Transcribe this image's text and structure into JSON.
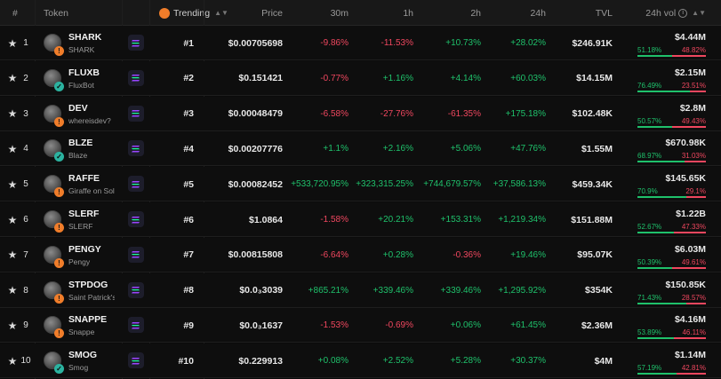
{
  "header": {
    "rank": "#",
    "token": "Token",
    "trending": "Trending",
    "price": "Price",
    "m30": "30m",
    "h1": "1h",
    "h2": "2h",
    "h24": "24h",
    "tvl": "TVL",
    "vol": "24h vol"
  },
  "colors": {
    "positive": "#1fc16b",
    "negative": "#f0475f",
    "accent": "#f07d2a"
  },
  "rows": [
    {
      "rank": "1",
      "name": "SHARK",
      "sub": "SHARK",
      "badge": "warning",
      "trending": "#1",
      "price": "$0.00705698",
      "m30": "-9.86%",
      "h1": "-11.53%",
      "h2": "+10.73%",
      "h24": "+28.02%",
      "tvl": "$246.91K",
      "vol": "$4.44M",
      "buy": "51.18%",
      "sell": "48.82%",
      "buy_frac": 0.5118
    },
    {
      "rank": "2",
      "name": "FLUXB",
      "sub": "FluxBot",
      "badge": "shield",
      "trending": "#2",
      "price": "$0.151421",
      "m30": "-0.77%",
      "h1": "+1.16%",
      "h2": "+4.14%",
      "h24": "+60.03%",
      "tvl": "$14.15M",
      "vol": "$2.15M",
      "buy": "76.49%",
      "sell": "23.51%",
      "buy_frac": 0.7649
    },
    {
      "rank": "3",
      "name": "DEV",
      "sub": "whereisdev?",
      "badge": "warning",
      "trending": "#3",
      "price": "$0.00048479",
      "m30": "-6.58%",
      "h1": "-27.76%",
      "h2": "-61.35%",
      "h24": "+175.18%",
      "tvl": "$102.48K",
      "vol": "$2.8M",
      "buy": "50.57%",
      "sell": "49.43%",
      "buy_frac": 0.5057
    },
    {
      "rank": "4",
      "name": "BLZE",
      "sub": "Blaze",
      "badge": "shield",
      "trending": "#4",
      "price": "$0.00207776",
      "m30": "+1.1%",
      "h1": "+2.16%",
      "h2": "+5.06%",
      "h24": "+47.76%",
      "tvl": "$1.55M",
      "vol": "$670.98K",
      "buy": "68.97%",
      "sell": "31.03%",
      "buy_frac": 0.6897
    },
    {
      "rank": "5",
      "name": "RAFFE",
      "sub": "Giraffe on Sol...",
      "badge": "warning",
      "trending": "#5",
      "price": "$0.00082452",
      "m30": "+533,720.95%",
      "h1": "+323,315.25%",
      "h2": "+744,679.57%",
      "h24": "+37,586.13%",
      "tvl": "$459.34K",
      "vol": "$145.65K",
      "buy": "70.9%",
      "sell": "29.1%",
      "buy_frac": 0.709
    },
    {
      "rank": "6",
      "name": "SLERF",
      "sub": "SLERF",
      "badge": "warning",
      "trending": "#6",
      "price": "$1.0864",
      "m30": "-1.58%",
      "h1": "+20.21%",
      "h2": "+153.31%",
      "h24": "+1,219.34%",
      "tvl": "$151.88M",
      "vol": "$1.22B",
      "buy": "52.67%",
      "sell": "47.33%",
      "buy_frac": 0.5267
    },
    {
      "rank": "7",
      "name": "PENGY",
      "sub": "Pengy",
      "badge": "warning",
      "trending": "#7",
      "price": "$0.00815808",
      "m30": "-6.64%",
      "h1": "+0.28%",
      "h2": "-0.36%",
      "h24": "+19.46%",
      "tvl": "$95.07K",
      "vol": "$6.03M",
      "buy": "50.39%",
      "sell": "49.61%",
      "buy_frac": 0.5039
    },
    {
      "rank": "8",
      "name": "STPDOG",
      "sub": "Saint Patrick's...",
      "badge": "warning",
      "trending": "#8",
      "price": "$0.0₃3039",
      "m30": "+865.21%",
      "h1": "+339.46%",
      "h2": "+339.46%",
      "h24": "+1,295.92%",
      "tvl": "$354K",
      "vol": "$150.85K",
      "buy": "71.43%",
      "sell": "28.57%",
      "buy_frac": 0.7143
    },
    {
      "rank": "9",
      "name": "SNAPPE",
      "sub": "Snappe",
      "badge": "warning",
      "trending": "#9",
      "price": "$0.0₃1637",
      "m30": "-1.53%",
      "h1": "-0.69%",
      "h2": "+0.06%",
      "h24": "+61.45%",
      "tvl": "$2.36M",
      "vol": "$4.16M",
      "buy": "53.89%",
      "sell": "46.11%",
      "buy_frac": 0.5389
    },
    {
      "rank": "10",
      "name": "SMOG",
      "sub": "Smog",
      "badge": "shield",
      "trending": "#10",
      "price": "$0.229913",
      "m30": "+0.08%",
      "h1": "+2.52%",
      "h2": "+5.28%",
      "h24": "+30.37%",
      "tvl": "$4M",
      "vol": "$1.14M",
      "buy": "57.19%",
      "sell": "42.81%",
      "buy_frac": 0.5719
    }
  ]
}
